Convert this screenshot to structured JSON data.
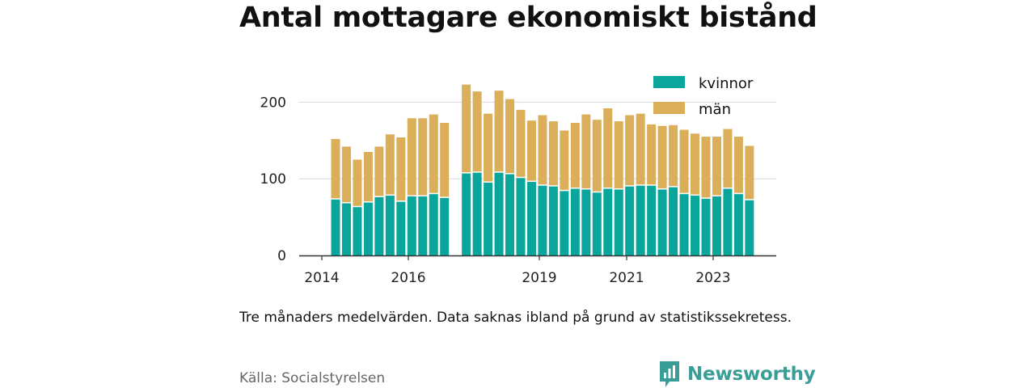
{
  "chart_data": {
    "type": "bar",
    "stacked": true,
    "title": "Antal mottagare ekonomiskt bistånd",
    "xlabel": "",
    "ylabel": "",
    "ylim": [
      0,
      235
    ],
    "yticks": [
      0,
      100,
      200
    ],
    "x_tick_labels": [
      "2014",
      "2016",
      "2019",
      "2021",
      "2023"
    ],
    "grid": true,
    "legend_position": "top-right",
    "colors": {
      "kvinnor": "#0aa69c",
      "män": "#dbae5a"
    },
    "series": [
      {
        "name": "kvinnor",
        "values": [
          73,
          68,
          63,
          69,
          76,
          78,
          70,
          77,
          77,
          80,
          75,
          null,
          107,
          108,
          95,
          108,
          106,
          101,
          96,
          91,
          90,
          84,
          87,
          86,
          82,
          87,
          86,
          90,
          91,
          91,
          86,
          89,
          80,
          78,
          74,
          77,
          87,
          80,
          72
        ]
      },
      {
        "name": "män",
        "values": [
          79,
          74,
          62,
          66,
          66,
          80,
          84,
          102,
          102,
          104,
          98,
          null,
          116,
          106,
          90,
          107,
          98,
          89,
          80,
          92,
          85,
          79,
          86,
          98,
          95,
          105,
          89,
          93,
          94,
          80,
          83,
          81,
          84,
          81,
          81,
          78,
          78,
          75,
          71
        ]
      }
    ]
  },
  "note": "Tre månaders medelvärden. Data saknas ibland på grund av statistikssekretess.",
  "source": "Källa: Socialstyrelsen",
  "brand": {
    "name": "Newsworthy",
    "color": "#3a9e97",
    "icon": "newsworthy-logo-icon"
  }
}
